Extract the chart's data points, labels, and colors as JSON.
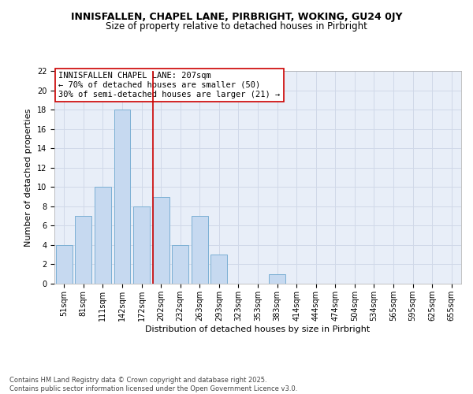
{
  "title_line1": "INNISFALLEN, CHAPEL LANE, PIRBRIGHT, WOKING, GU24 0JY",
  "title_line2": "Size of property relative to detached houses in Pirbright",
  "xlabel": "Distribution of detached houses by size in Pirbright",
  "ylabel": "Number of detached properties",
  "categories": [
    "51sqm",
    "81sqm",
    "111sqm",
    "142sqm",
    "172sqm",
    "202sqm",
    "232sqm",
    "263sqm",
    "293sqm",
    "323sqm",
    "353sqm",
    "383sqm",
    "414sqm",
    "444sqm",
    "474sqm",
    "504sqm",
    "534sqm",
    "565sqm",
    "595sqm",
    "625sqm",
    "655sqm"
  ],
  "values": [
    4,
    7,
    10,
    18,
    8,
    9,
    4,
    7,
    3,
    0,
    0,
    1,
    0,
    0,
    0,
    0,
    0,
    0,
    0,
    0,
    0
  ],
  "bar_color": "#c6d9f0",
  "bar_edgecolor": "#7bafd4",
  "vline_index": 5,
  "vline_color": "#cc0000",
  "annotation_text": "INNISFALLEN CHAPEL LANE: 207sqm\n← 70% of detached houses are smaller (50)\n30% of semi-detached houses are larger (21) →",
  "annotation_box_edgecolor": "#cc0000",
  "ylim": [
    0,
    22
  ],
  "yticks": [
    0,
    2,
    4,
    6,
    8,
    10,
    12,
    14,
    16,
    18,
    20,
    22
  ],
  "grid_color": "#d0d8e8",
  "bg_color": "#e8eef8",
  "footer_text": "Contains HM Land Registry data © Crown copyright and database right 2025.\nContains public sector information licensed under the Open Government Licence v3.0.",
  "title_fontsize": 9,
  "subtitle_fontsize": 8.5,
  "axis_label_fontsize": 8,
  "tick_fontsize": 7,
  "annotation_fontsize": 7.5,
  "footer_fontsize": 6
}
